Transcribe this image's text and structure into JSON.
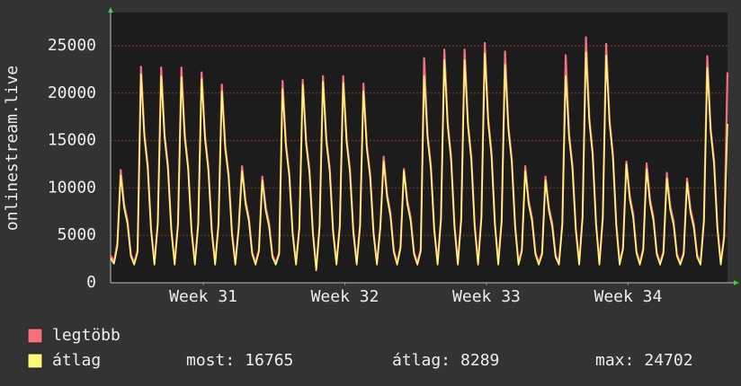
{
  "chart_data": {
    "type": "line",
    "y_label": "onlinestream.live",
    "ylim": [
      0,
      28500
    ],
    "yticks": [
      0,
      5000,
      10000,
      15000,
      20000,
      25000
    ],
    "xlim": [
      0,
      183
    ],
    "xticks": [
      {
        "value": 27.5,
        "label": "Week 31"
      },
      {
        "value": 69.5,
        "label": "Week 32"
      },
      {
        "value": 111.5,
        "label": "Week 33"
      },
      {
        "value": 153.5,
        "label": "Week 34"
      }
    ],
    "grid": true,
    "series": [
      {
        "name": "legtöbb",
        "color": "#f7707c",
        "values": [
          2900,
          2200,
          4200,
          11900,
          8300,
          6600,
          3000,
          2100,
          3400,
          22800,
          15800,
          12500,
          5700,
          2100,
          6400,
          22700,
          15700,
          12400,
          5700,
          2100,
          6300,
          22700,
          15600,
          12300,
          5600,
          2100,
          6300,
          22200,
          15500,
          12200,
          5600,
          2100,
          6200,
          20900,
          14500,
          11500,
          5300,
          2100,
          5900,
          12300,
          8700,
          6900,
          3200,
          2100,
          3500,
          11200,
          8000,
          6300,
          2900,
          2100,
          3200,
          21300,
          14700,
          11600,
          5300,
          2100,
          5900,
          21400,
          15000,
          11900,
          5400,
          1500,
          6100,
          21800,
          15200,
          12100,
          5500,
          2100,
          6100,
          21800,
          15200,
          12000,
          5500,
          2100,
          6100,
          21000,
          14500,
          11500,
          5300,
          2100,
          5900,
          13300,
          9400,
          7400,
          3400,
          2100,
          3800,
          12000,
          8700,
          6900,
          3200,
          2100,
          3500,
          23700,
          15700,
          12400,
          5700,
          2100,
          6800,
          24600,
          16900,
          13300,
          6100,
          2100,
          6800,
          24600,
          16900,
          13300,
          6100,
          2100,
          7000,
          25300,
          17300,
          13700,
          6300,
          2100,
          6600,
          24400,
          16500,
          13100,
          6000,
          2100,
          3500,
          12300,
          8700,
          6900,
          3200,
          2100,
          3200,
          11200,
          8000,
          6300,
          2900,
          2100,
          6300,
          24000,
          15700,
          12400,
          5700,
          2100,
          7000,
          25900,
          17400,
          13800,
          6300,
          2100,
          6900,
          25200,
          17200,
          13600,
          6200,
          2100,
          3700,
          12800,
          9200,
          7300,
          3300,
          2100,
          3600,
          12600,
          8800,
          7000,
          3200,
          2100,
          3300,
          11600,
          8100,
          6500,
          3000,
          2100,
          3200,
          11000,
          7800,
          6200,
          2900,
          2100,
          6600,
          23900,
          16300,
          12900,
          5900,
          2100,
          4900,
          22200
        ]
      },
      {
        "name": "átlag",
        "color": "#fafa78",
        "values": [
          2600,
          2000,
          3800,
          11300,
          7900,
          6200,
          2800,
          1900,
          3200,
          22000,
          15400,
          12100,
          5500,
          1900,
          6200,
          21800,
          15300,
          12000,
          5500,
          1900,
          6100,
          21700,
          15200,
          11900,
          5400,
          1900,
          6100,
          21500,
          15100,
          11800,
          5400,
          1900,
          6000,
          20200,
          14100,
          11100,
          5100,
          1900,
          5700,
          11800,
          8300,
          6500,
          3000,
          1900,
          3300,
          10800,
          7600,
          5900,
          2700,
          1900,
          3000,
          20400,
          14300,
          11200,
          5100,
          1900,
          5700,
          20900,
          14600,
          11500,
          5200,
          1300,
          5900,
          21200,
          14800,
          11700,
          5300,
          1900,
          5900,
          21100,
          14800,
          11600,
          5300,
          1900,
          5900,
          20200,
          14100,
          11100,
          5100,
          1900,
          5700,
          12800,
          9000,
          7000,
          3200,
          1900,
          3600,
          11800,
          8300,
          6500,
          3000,
          1900,
          3300,
          21800,
          15300,
          12000,
          5500,
          1900,
          6600,
          23500,
          16500,
          12900,
          5900,
          1900,
          6600,
          23500,
          16500,
          12900,
          5900,
          1900,
          6800,
          24200,
          16900,
          13300,
          6100,
          1900,
          6400,
          23000,
          16100,
          12700,
          5800,
          1900,
          3300,
          11800,
          8300,
          6500,
          3000,
          1900,
          3000,
          10800,
          7600,
          5900,
          2700,
          1900,
          6100,
          21800,
          15300,
          12000,
          5500,
          1900,
          6800,
          24300,
          17000,
          13400,
          6100,
          1900,
          6700,
          24000,
          16800,
          13200,
          6000,
          1900,
          3500,
          12500,
          8800,
          6900,
          3100,
          1900,
          3400,
          12000,
          8400,
          6600,
          3000,
          1900,
          3100,
          11000,
          7700,
          6100,
          2800,
          1900,
          3000,
          10600,
          7400,
          5800,
          2700,
          1900,
          6400,
          22700,
          15900,
          12500,
          5700,
          1900,
          4700,
          16765
        ]
      }
    ],
    "stats": [
      {
        "label": "most:",
        "value": 16765
      },
      {
        "label": "átlag:",
        "value": 8289
      },
      {
        "label": "max:",
        "value": 24702
      }
    ]
  }
}
